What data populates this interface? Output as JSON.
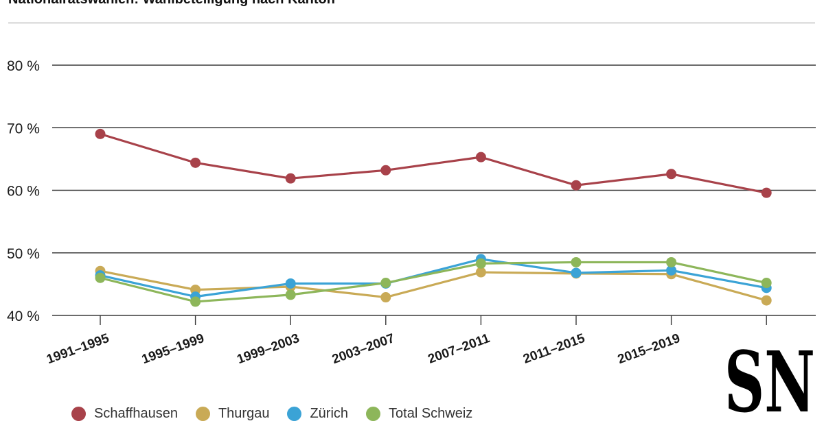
{
  "chart_data": {
    "type": "line",
    "title": "Nationalratswahlen: Wahlbeteiligung nach Kanton",
    "categories": [
      "1991–1995",
      "1995–1999",
      "1999–2003",
      "2003–2007",
      "2007–2011",
      "2011–2015",
      "2015–2019",
      ""
    ],
    "yticks": [
      "40 %",
      "50 %",
      "60 %",
      "70 %",
      "80 %"
    ],
    "ylim": [
      40,
      80
    ],
    "grid": true,
    "legend_position": "bottom-left",
    "series": [
      {
        "name": "Schaffhausen",
        "color": "#a8424a",
        "values": [
          69.0,
          64.4,
          61.9,
          63.2,
          65.3,
          60.8,
          62.6,
          59.6
        ]
      },
      {
        "name": "Thurgau",
        "color": "#c9aa56",
        "values": [
          47.1,
          44.1,
          44.6,
          42.9,
          46.9,
          46.7,
          46.6,
          42.4
        ]
      },
      {
        "name": "Zürich",
        "color": "#3ba3d6",
        "values": [
          46.4,
          43.0,
          45.1,
          45.1,
          49.0,
          46.8,
          47.2,
          44.4
        ]
      },
      {
        "name": "Total Schweiz",
        "color": "#8db65a",
        "values": [
          46.0,
          42.2,
          43.3,
          45.2,
          48.3,
          48.5,
          48.5,
          45.2
        ]
      }
    ]
  },
  "logo": {
    "text": "SN"
  }
}
